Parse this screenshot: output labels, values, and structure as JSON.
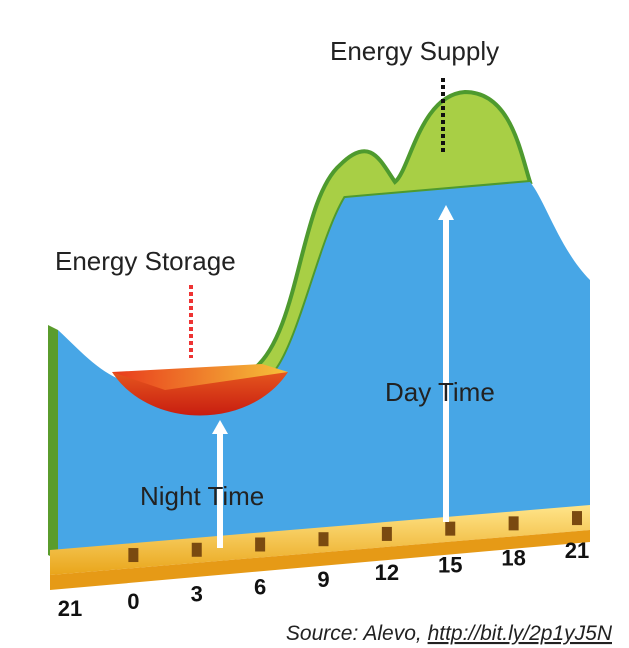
{
  "labels": {
    "energy_supply": "Energy Supply",
    "energy_storage": "Energy Storage",
    "night_time": "Night Time",
    "day_time": "Day Time"
  },
  "hours": [
    "21",
    "0",
    "3",
    "6",
    "9",
    "12",
    "15",
    "18",
    "21"
  ],
  "source": {
    "text": "Source: Alevo, ",
    "link": "http://bit.ly/2p1yJ5N"
  }
}
